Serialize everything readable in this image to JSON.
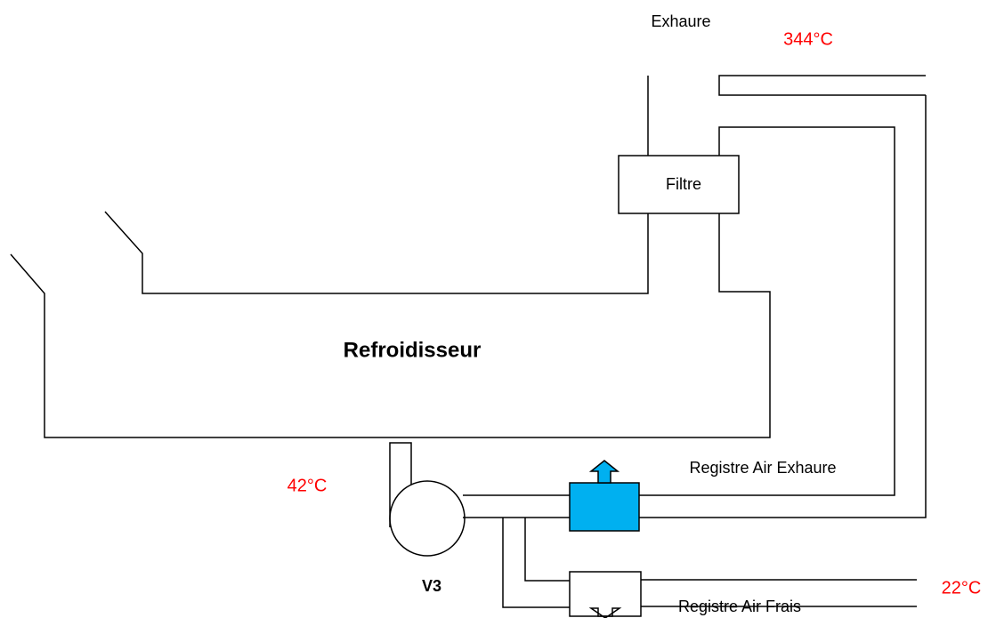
{
  "labels": {
    "exhaure": "Exhaure",
    "temp_exhaure": "344°C",
    "filtre": "Filtre",
    "refroidisseur": "Refroidisseur",
    "temp_v3": "42°C",
    "v3": "V3",
    "registre_exhaure": "Registre Air Exhaure",
    "temp_frais": "22°C",
    "registre_frais": "Registre Air Frais"
  }
}
